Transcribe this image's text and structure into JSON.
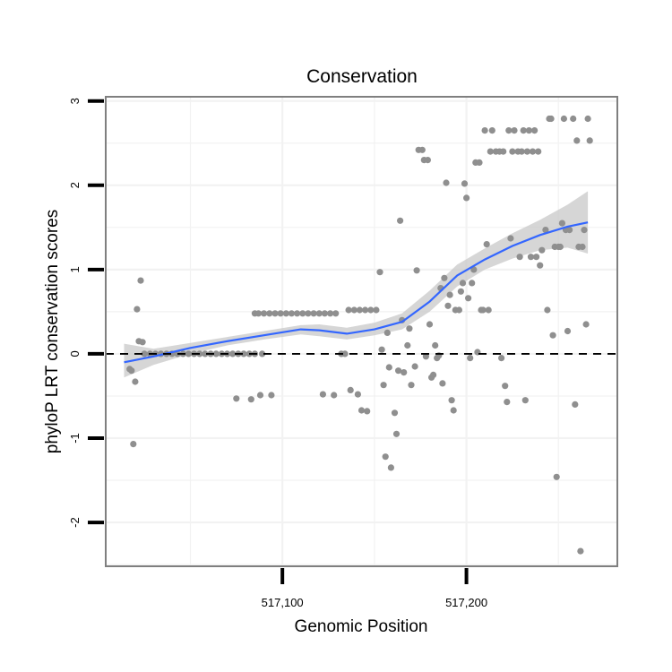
{
  "chart_data": {
    "type": "scatter",
    "title": "Conservation",
    "xlabel": "Genomic Position",
    "ylabel": "phyloP LRT conservation scores",
    "xlim": [
      517004,
      517282
    ],
    "ylim": [
      -2.52,
      3.05
    ],
    "x_ticks": [
      517100,
      517200
    ],
    "x_tick_labels": [
      "517,100",
      "517,200"
    ],
    "y_ticks": [
      -2,
      -1,
      0,
      1,
      2,
      3
    ],
    "y_tick_labels": [
      "-2",
      "-1",
      "0",
      "1",
      "2",
      "3"
    ],
    "grid": true,
    "reference_line": {
      "y": 0,
      "style": "dashed"
    },
    "colors": {
      "points": "#8f8f8f",
      "smooth_line": "#3366ff",
      "ribbon": "#c8c8c8",
      "grid": "#f2f2f2",
      "border": "#7f7f7f"
    },
    "points": [
      {
        "x": 517017,
        "y": -0.18
      },
      {
        "x": 517018,
        "y": -0.2
      },
      {
        "x": 517019,
        "y": -1.07
      },
      {
        "x": 517020,
        "y": -0.33
      },
      {
        "x": 517021,
        "y": 0.53
      },
      {
        "x": 517022,
        "y": 0.15
      },
      {
        "x": 517023,
        "y": 0.87
      },
      {
        "x": 517024,
        "y": 0.14
      },
      {
        "x": 517025,
        "y": 0.0
      },
      {
        "x": 517028,
        "y": 0.0
      },
      {
        "x": 517031,
        "y": 0.0
      },
      {
        "x": 517034,
        "y": 0.0
      },
      {
        "x": 517037,
        "y": 0.0
      },
      {
        "x": 517040,
        "y": 0.0
      },
      {
        "x": 517043,
        "y": 0.0
      },
      {
        "x": 517046,
        "y": 0.0
      },
      {
        "x": 517049,
        "y": 0.0
      },
      {
        "x": 517052,
        "y": 0.0
      },
      {
        "x": 517055,
        "y": 0.0
      },
      {
        "x": 517058,
        "y": 0.0
      },
      {
        "x": 517061,
        "y": 0.0
      },
      {
        "x": 517064,
        "y": 0.0
      },
      {
        "x": 517067,
        "y": 0.0
      },
      {
        "x": 517070,
        "y": 0.0
      },
      {
        "x": 517073,
        "y": 0.0
      },
      {
        "x": 517075,
        "y": -0.53
      },
      {
        "x": 517076,
        "y": 0.0
      },
      {
        "x": 517079,
        "y": 0.0
      },
      {
        "x": 517082,
        "y": 0.0
      },
      {
        "x": 517083,
        "y": -0.54
      },
      {
        "x": 517085,
        "y": 0.0
      },
      {
        "x": 517085,
        "y": 0.48
      },
      {
        "x": 517087,
        "y": 0.48
      },
      {
        "x": 517088,
        "y": -0.49
      },
      {
        "x": 517089,
        "y": 0.0
      },
      {
        "x": 517090,
        "y": 0.48
      },
      {
        "x": 517093,
        "y": 0.48
      },
      {
        "x": 517094,
        "y": -0.49
      },
      {
        "x": 517096,
        "y": 0.48
      },
      {
        "x": 517099,
        "y": 0.48
      },
      {
        "x": 517102,
        "y": 0.48
      },
      {
        "x": 517105,
        "y": 0.48
      },
      {
        "x": 517108,
        "y": 0.48
      },
      {
        "x": 517111,
        "y": 0.48
      },
      {
        "x": 517114,
        "y": 0.48
      },
      {
        "x": 517117,
        "y": 0.48
      },
      {
        "x": 517120,
        "y": 0.48
      },
      {
        "x": 517122,
        "y": -0.48
      },
      {
        "x": 517123,
        "y": 0.48
      },
      {
        "x": 517126,
        "y": 0.48
      },
      {
        "x": 517128,
        "y": -0.49
      },
      {
        "x": 517129,
        "y": 0.48
      },
      {
        "x": 517132,
        "y": 0.0
      },
      {
        "x": 517134,
        "y": 0.0
      },
      {
        "x": 517136,
        "y": 0.52
      },
      {
        "x": 517137,
        "y": -0.43
      },
      {
        "x": 517139,
        "y": 0.52
      },
      {
        "x": 517141,
        "y": -0.48
      },
      {
        "x": 517142,
        "y": 0.52
      },
      {
        "x": 517143,
        "y": -0.67
      },
      {
        "x": 517145,
        "y": 0.52
      },
      {
        "x": 517146,
        "y": -0.68
      },
      {
        "x": 517148,
        "y": 0.52
      },
      {
        "x": 517151,
        "y": 0.52
      },
      {
        "x": 517153,
        "y": 0.97
      },
      {
        "x": 517154,
        "y": 0.05
      },
      {
        "x": 517155,
        "y": -0.37
      },
      {
        "x": 517156,
        "y": -1.22
      },
      {
        "x": 517157,
        "y": 0.25
      },
      {
        "x": 517158,
        "y": -0.16
      },
      {
        "x": 517159,
        "y": -1.35
      },
      {
        "x": 517161,
        "y": -0.7
      },
      {
        "x": 517162,
        "y": -0.95
      },
      {
        "x": 517163,
        "y": -0.2
      },
      {
        "x": 517164,
        "y": 1.58
      },
      {
        "x": 517165,
        "y": 0.4
      },
      {
        "x": 517166,
        "y": -0.22
      },
      {
        "x": 517168,
        "y": 0.1
      },
      {
        "x": 517169,
        "y": 0.3
      },
      {
        "x": 517170,
        "y": -0.37
      },
      {
        "x": 517172,
        "y": -0.15
      },
      {
        "x": 517173,
        "y": 0.99
      },
      {
        "x": 517174,
        "y": 2.42
      },
      {
        "x": 517176,
        "y": 2.42
      },
      {
        "x": 517177,
        "y": 2.3
      },
      {
        "x": 517178,
        "y": -0.03
      },
      {
        "x": 517179,
        "y": 2.3
      },
      {
        "x": 517180,
        "y": 0.35
      },
      {
        "x": 517181,
        "y": -0.28
      },
      {
        "x": 517182,
        "y": -0.25
      },
      {
        "x": 517183,
        "y": 0.1
      },
      {
        "x": 517184,
        "y": -0.05
      },
      {
        "x": 517185,
        "y": -0.02
      },
      {
        "x": 517186,
        "y": 0.78
      },
      {
        "x": 517187,
        "y": -0.35
      },
      {
        "x": 517188,
        "y": 0.9
      },
      {
        "x": 517189,
        "y": 2.03
      },
      {
        "x": 517190,
        "y": 0.57
      },
      {
        "x": 517191,
        "y": 0.7
      },
      {
        "x": 517192,
        "y": -0.55
      },
      {
        "x": 517193,
        "y": -0.67
      },
      {
        "x": 517194,
        "y": 0.52
      },
      {
        "x": 517196,
        "y": 0.52
      },
      {
        "x": 517197,
        "y": 0.74
      },
      {
        "x": 517198,
        "y": 0.84
      },
      {
        "x": 517199,
        "y": 2.02
      },
      {
        "x": 517200,
        "y": 1.85
      },
      {
        "x": 517201,
        "y": 0.66
      },
      {
        "x": 517202,
        "y": -0.05
      },
      {
        "x": 517203,
        "y": 0.84
      },
      {
        "x": 517204,
        "y": 1.0
      },
      {
        "x": 517205,
        "y": 2.27
      },
      {
        "x": 517206,
        "y": 0.02
      },
      {
        "x": 517207,
        "y": 2.27
      },
      {
        "x": 517208,
        "y": 0.52
      },
      {
        "x": 517209,
        "y": 0.52
      },
      {
        "x": 517210,
        "y": 2.65
      },
      {
        "x": 517211,
        "y": 1.3
      },
      {
        "x": 517212,
        "y": 0.52
      },
      {
        "x": 517213,
        "y": 2.4
      },
      {
        "x": 517214,
        "y": 2.65
      },
      {
        "x": 517216,
        "y": 2.4
      },
      {
        "x": 517218,
        "y": 2.4
      },
      {
        "x": 517219,
        "y": -0.05
      },
      {
        "x": 517220,
        "y": 2.4
      },
      {
        "x": 517221,
        "y": -0.38
      },
      {
        "x": 517222,
        "y": -0.57
      },
      {
        "x": 517223,
        "y": 2.65
      },
      {
        "x": 517224,
        "y": 1.37
      },
      {
        "x": 517225,
        "y": 2.4
      },
      {
        "x": 517226,
        "y": 2.65
      },
      {
        "x": 517228,
        "y": 2.4
      },
      {
        "x": 517229,
        "y": 1.15
      },
      {
        "x": 517230,
        "y": 2.4
      },
      {
        "x": 517231,
        "y": 2.65
      },
      {
        "x": 517232,
        "y": -0.55
      },
      {
        "x": 517233,
        "y": 2.4
      },
      {
        "x": 517234,
        "y": 2.65
      },
      {
        "x": 517235,
        "y": 1.15
      },
      {
        "x": 517236,
        "y": 2.4
      },
      {
        "x": 517237,
        "y": 2.65
      },
      {
        "x": 517238,
        "y": 1.15
      },
      {
        "x": 517239,
        "y": 2.4
      },
      {
        "x": 517240,
        "y": 1.05
      },
      {
        "x": 517241,
        "y": 1.23
      },
      {
        "x": 517243,
        "y": 1.47
      },
      {
        "x": 517244,
        "y": 0.52
      },
      {
        "x": 517245,
        "y": 2.79
      },
      {
        "x": 517246,
        "y": 2.79
      },
      {
        "x": 517247,
        "y": 0.22
      },
      {
        "x": 517248,
        "y": 1.27
      },
      {
        "x": 517249,
        "y": -1.46
      },
      {
        "x": 517250,
        "y": 1.27
      },
      {
        "x": 517251,
        "y": 1.27
      },
      {
        "x": 517252,
        "y": 1.55
      },
      {
        "x": 517253,
        "y": 2.79
      },
      {
        "x": 517254,
        "y": 1.47
      },
      {
        "x": 517255,
        "y": 0.27
      },
      {
        "x": 517256,
        "y": 1.47
      },
      {
        "x": 517258,
        "y": 2.79
      },
      {
        "x": 517259,
        "y": -0.6
      },
      {
        "x": 517260,
        "y": 2.53
      },
      {
        "x": 517261,
        "y": 1.27
      },
      {
        "x": 517262,
        "y": -2.34
      },
      {
        "x": 517263,
        "y": 1.27
      },
      {
        "x": 517264,
        "y": 1.47
      },
      {
        "x": 517265,
        "y": 0.35
      },
      {
        "x": 517266,
        "y": 2.79
      },
      {
        "x": 517267,
        "y": 2.53
      }
    ],
    "smooth": {
      "x": [
        517014,
        517030,
        517050,
        517070,
        517090,
        517110,
        517120,
        517135,
        517150,
        517165,
        517180,
        517195,
        517210,
        517225,
        517240,
        517255,
        517266
      ],
      "y": [
        -0.1,
        -0.03,
        0.07,
        0.15,
        0.22,
        0.29,
        0.28,
        0.24,
        0.29,
        0.38,
        0.62,
        0.93,
        1.12,
        1.28,
        1.41,
        1.51,
        1.56
      ],
      "lower": [
        -0.28,
        -0.13,
        0.0,
        0.1,
        0.17,
        0.23,
        0.21,
        0.17,
        0.22,
        0.29,
        0.5,
        0.8,
        1.0,
        1.13,
        1.23,
        1.26,
        1.19
      ],
      "upper": [
        0.12,
        0.06,
        0.13,
        0.2,
        0.27,
        0.34,
        0.35,
        0.31,
        0.37,
        0.48,
        0.75,
        1.06,
        1.25,
        1.43,
        1.59,
        1.77,
        1.93
      ]
    }
  }
}
